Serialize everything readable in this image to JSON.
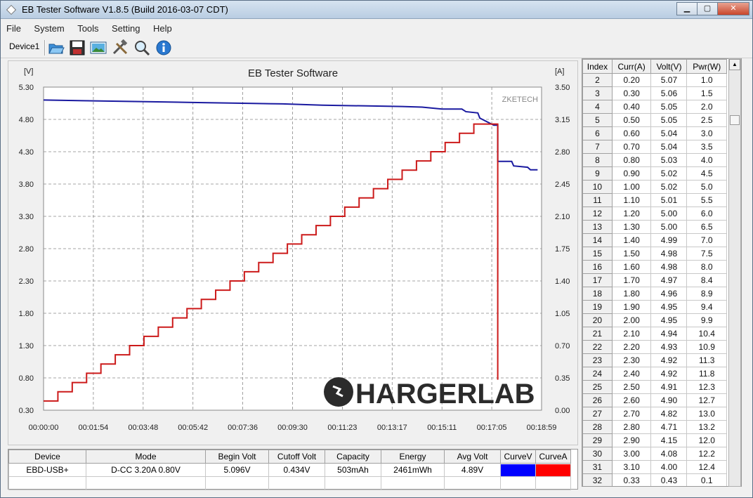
{
  "window": {
    "title": "EB Tester Software V1.8.5 (Build 2016-03-07 CDT)",
    "controls": [
      "▁",
      "▢",
      "✕"
    ]
  },
  "menu": [
    "File",
    "System",
    "Tools",
    "Setting",
    "Help"
  ],
  "toolbar": {
    "device": "Device1",
    "icons": [
      "folder-open-icon",
      "save-icon",
      "image-icon",
      "tools-icon",
      "search-icon",
      "info-icon"
    ]
  },
  "chart_data": {
    "type": "line",
    "title": "EB Tester Software",
    "watermark": "ZKETECH",
    "ylabel_left": "[V]",
    "ylabel_right": "[A]",
    "ylim_left": [
      0.3,
      5.3
    ],
    "ylim_right": [
      0.0,
      3.5
    ],
    "y_ticks_left": [
      "5.30",
      "4.80",
      "4.30",
      "3.80",
      "3.30",
      "2.80",
      "2.30",
      "1.80",
      "1.30",
      "0.80",
      "0.30"
    ],
    "y_ticks_right": [
      "3.50",
      "3.15",
      "2.80",
      "2.45",
      "2.10",
      "1.75",
      "1.40",
      "1.05",
      "0.70",
      "0.35",
      "0.00"
    ],
    "x_ticks": [
      "00:00:00",
      "00:01:54",
      "00:03:48",
      "00:05:42",
      "00:07:36",
      "00:09:30",
      "00:11:23",
      "00:13:17",
      "00:15:11",
      "00:17:05",
      "00:18:59"
    ],
    "x_range_seconds": [
      0,
      1139
    ],
    "series": [
      {
        "name": "CurveV",
        "color": "#1a1aa0",
        "points": [
          [
            0,
            5.1
          ],
          [
            100,
            5.09
          ],
          [
            200,
            5.08
          ],
          [
            300,
            5.07
          ],
          [
            400,
            5.06
          ],
          [
            500,
            5.05
          ],
          [
            600,
            5.04
          ],
          [
            700,
            5.02
          ],
          [
            800,
            5.01
          ],
          [
            900,
            5.0
          ],
          [
            950,
            4.99
          ],
          [
            1000,
            4.96
          ],
          [
            1050,
            4.96
          ],
          [
            1060,
            4.92
          ],
          [
            1090,
            4.9
          ],
          [
            1095,
            4.82
          ],
          [
            1130,
            4.71
          ],
          [
            1140,
            4.71
          ],
          [
            1140,
            4.15
          ],
          [
            1175,
            4.15
          ],
          [
            1180,
            4.08
          ],
          [
            1215,
            4.06
          ],
          [
            1222,
            4.02
          ],
          [
            1240,
            4.02
          ]
        ]
      },
      {
        "name": "CurveA",
        "color": "#cc1a1a",
        "points": [
          [
            0,
            0.1
          ],
          [
            36,
            0.2
          ],
          [
            72,
            0.3
          ],
          [
            108,
            0.4
          ],
          [
            144,
            0.5
          ],
          [
            180,
            0.6
          ],
          [
            216,
            0.7
          ],
          [
            252,
            0.8
          ],
          [
            288,
            0.9
          ],
          [
            324,
            1.0
          ],
          [
            360,
            1.1
          ],
          [
            396,
            1.2
          ],
          [
            432,
            1.3
          ],
          [
            468,
            1.4
          ],
          [
            504,
            1.5
          ],
          [
            540,
            1.6
          ],
          [
            576,
            1.7
          ],
          [
            612,
            1.8
          ],
          [
            648,
            1.9
          ],
          [
            684,
            2.0
          ],
          [
            720,
            2.1
          ],
          [
            756,
            2.2
          ],
          [
            792,
            2.3
          ],
          [
            828,
            2.4
          ],
          [
            864,
            2.5
          ],
          [
            900,
            2.6
          ],
          [
            936,
            2.7
          ],
          [
            972,
            2.8
          ],
          [
            1008,
            2.9
          ],
          [
            1044,
            3.0
          ],
          [
            1080,
            3.1
          ],
          [
            1140,
            3.1
          ],
          [
            1140,
            0.33
          ]
        ]
      }
    ]
  },
  "overlay_logo": "HARGERLAB",
  "data_table": {
    "headers": [
      "Index",
      "Curr(A)",
      "Volt(V)",
      "Pwr(W)"
    ],
    "rows": [
      [
        "2",
        "0.20",
        "5.07",
        "1.0"
      ],
      [
        "3",
        "0.30",
        "5.06",
        "1.5"
      ],
      [
        "4",
        "0.40",
        "5.05",
        "2.0"
      ],
      [
        "5",
        "0.50",
        "5.05",
        "2.5"
      ],
      [
        "6",
        "0.60",
        "5.04",
        "3.0"
      ],
      [
        "7",
        "0.70",
        "5.04",
        "3.5"
      ],
      [
        "8",
        "0.80",
        "5.03",
        "4.0"
      ],
      [
        "9",
        "0.90",
        "5.02",
        "4.5"
      ],
      [
        "10",
        "1.00",
        "5.02",
        "5.0"
      ],
      [
        "11",
        "1.10",
        "5.01",
        "5.5"
      ],
      [
        "12",
        "1.20",
        "5.00",
        "6.0"
      ],
      [
        "13",
        "1.30",
        "5.00",
        "6.5"
      ],
      [
        "14",
        "1.40",
        "4.99",
        "7.0"
      ],
      [
        "15",
        "1.50",
        "4.98",
        "7.5"
      ],
      [
        "16",
        "1.60",
        "4.98",
        "8.0"
      ],
      [
        "17",
        "1.70",
        "4.97",
        "8.4"
      ],
      [
        "18",
        "1.80",
        "4.96",
        "8.9"
      ],
      [
        "19",
        "1.90",
        "4.95",
        "9.4"
      ],
      [
        "20",
        "2.00",
        "4.95",
        "9.9"
      ],
      [
        "21",
        "2.10",
        "4.94",
        "10.4"
      ],
      [
        "22",
        "2.20",
        "4.93",
        "10.9"
      ],
      [
        "23",
        "2.30",
        "4.92",
        "11.3"
      ],
      [
        "24",
        "2.40",
        "4.92",
        "11.8"
      ],
      [
        "25",
        "2.50",
        "4.91",
        "12.3"
      ],
      [
        "26",
        "2.60",
        "4.90",
        "12.7"
      ],
      [
        "27",
        "2.70",
        "4.82",
        "13.0"
      ],
      [
        "28",
        "2.80",
        "4.71",
        "13.2"
      ],
      [
        "29",
        "2.90",
        "4.15",
        "12.0"
      ],
      [
        "30",
        "3.00",
        "4.08",
        "12.2"
      ],
      [
        "31",
        "3.10",
        "4.00",
        "12.4"
      ],
      [
        "32",
        "0.33",
        "0.43",
        "0.1"
      ]
    ]
  },
  "summary": {
    "headers": [
      "Device",
      "Mode",
      "Begin Volt",
      "Cutoff Volt",
      "Capacity",
      "Energy",
      "Avg Volt",
      "CurveV",
      "CurveA"
    ],
    "row": [
      "EBD-USB+",
      "D-CC  3.20A  0.80V",
      "5.096V",
      "0.434V",
      "503mAh",
      "2461mWh",
      "4.89V"
    ],
    "curve_colors": [
      "#0000ff",
      "#ff0000"
    ]
  }
}
